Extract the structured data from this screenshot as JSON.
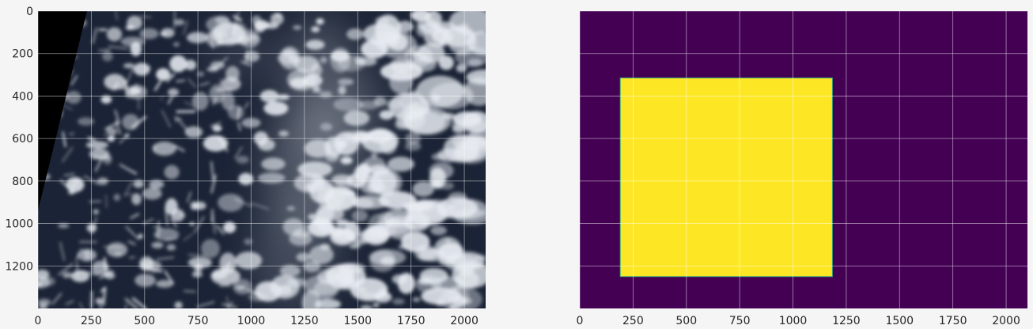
{
  "figure": {
    "background": "#f5f5f5",
    "grid_color": "#ffffff",
    "tick_color": "#262626"
  },
  "chart_data": [
    {
      "type": "heatmap",
      "description_source": "satellite image panel",
      "xlim": [
        0,
        2100
      ],
      "ylim": [
        1400,
        0
      ],
      "xticks": [
        0,
        250,
        500,
        750,
        1000,
        1250,
        1500,
        1750,
        2000
      ],
      "yticks": [
        0,
        200,
        400,
        600,
        800,
        1000,
        1200
      ],
      "grid": true,
      "image": {
        "kind": "satellite cloud imagery",
        "ocean_color": "#1b2436",
        "cloud_color": "#e8ecf2",
        "no_data_color": "#000000",
        "no_data_region": [
          [
            0,
            0
          ],
          [
            230,
            0
          ],
          [
            0,
            940
          ]
        ]
      }
    },
    {
      "type": "heatmap",
      "description_source": "mask panel",
      "xlim": [
        0,
        2100
      ],
      "ylim": [
        1400,
        0
      ],
      "xticks": [
        0,
        250,
        500,
        750,
        1000,
        1250,
        1500,
        1750,
        2000
      ],
      "yticks": [],
      "grid": true,
      "background_value": 0,
      "background_color": "#440154",
      "mask": {
        "value": 1,
        "color": "#fde725",
        "x_range": [
          190,
          1185
        ],
        "y_range": [
          315,
          1250
        ]
      }
    }
  ]
}
